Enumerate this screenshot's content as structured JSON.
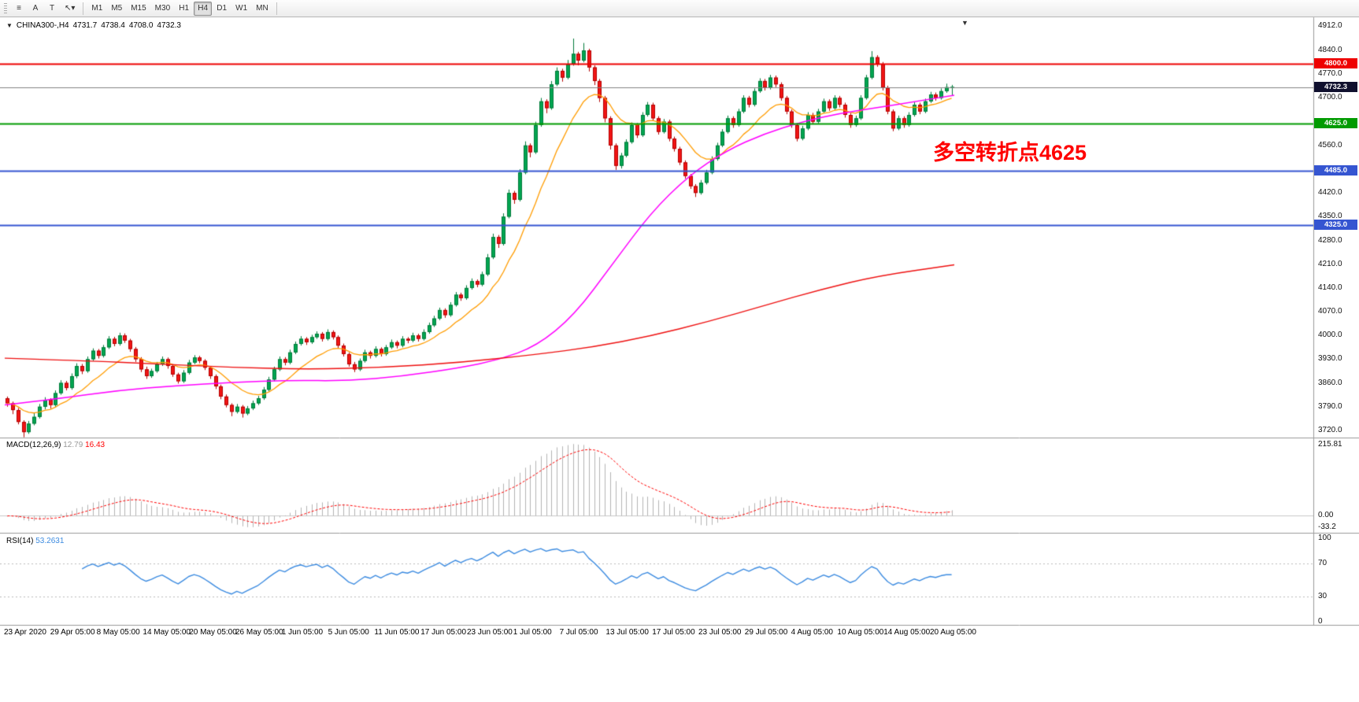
{
  "toolbar": {
    "buttons": [
      {
        "id": "menu",
        "glyph": "≡"
      },
      {
        "id": "text-a",
        "glyph": "A"
      },
      {
        "id": "text-t",
        "glyph": "T"
      },
      {
        "id": "pointer-dropdown",
        "glyph": "↖",
        "dropdown": "▾"
      }
    ],
    "periods": [
      "M1",
      "M5",
      "M15",
      "M30",
      "H1",
      "H4",
      "D1",
      "W1",
      "MN"
    ],
    "active_period": "H4"
  },
  "icons": {
    "shift_marker": "▼"
  },
  "symbol_info": {
    "dropdown_glyph": "▼",
    "symbol": "CHINA300-,H4",
    "open": "4731.7",
    "high": "4738.4",
    "low": "4708.0",
    "close": "4732.3"
  },
  "annotation": {
    "text": "多空转折点4625",
    "color": "#ff0000"
  },
  "current_price": {
    "label": "4732.3",
    "value": 4732.3,
    "badge_bg": "#10102e",
    "line_color": "#808080"
  },
  "macd_panel": {
    "name": "MACD(12,26,9)",
    "value_main": "12.79",
    "value_signal": "16.43",
    "axis_top": "215.81",
    "axis_zero": "0.00",
    "axis_bottom": "-33.2",
    "fast": 12,
    "slow": 26,
    "signal": 9,
    "hist_color": "#b3b3b3",
    "signal_color": "#ff0000",
    "value_main_color": "#999999"
  },
  "rsi_panel": {
    "name": "RSI(14)",
    "value": "53.2631",
    "period": 14,
    "line_color": "#3c8be0",
    "levels": [
      100,
      70,
      30,
      0
    ],
    "level_lines": [
      70,
      30
    ]
  },
  "chart_data": {
    "type": "candlestick",
    "symbol": "CHINA300-",
    "timeframe": "H4",
    "y_range": [
      3699,
      4933
    ],
    "y_ticks": [
      "4912.0",
      "4840.0",
      "4770.0",
      "4700.0",
      "4630.0",
      "4560.0",
      "4490.0",
      "4420.0",
      "4350.0",
      "4280.0",
      "4210.0",
      "4140.0",
      "4070.0",
      "4000.0",
      "3930.0",
      "3860.0",
      "3790.0",
      "3720.0"
    ],
    "x_labels": [
      "23 Apr 2020",
      "29 Apr 05:00",
      "8 May 05:00",
      "14 May 05:00",
      "20 May 05:00",
      "26 May 05:00",
      "1 Jun 05:00",
      "5 Jun 05:00",
      "11 Jun 05:00",
      "17 Jun 05:00",
      "23 Jun 05:00",
      "1 Jul 05:00",
      "7 Jul 05:00",
      "13 Jul 05:00",
      "17 Jul 05:00",
      "23 Jul 05:00",
      "29 Jul 05:00",
      "4 Aug 05:00",
      "10 Aug 05:00",
      "14 Aug 05:00",
      "20 Aug 05:00"
    ],
    "levels": [
      {
        "price": 4800.0,
        "label": "4800.0",
        "color": "#ee0000",
        "width": 2
      },
      {
        "price": 4625.0,
        "label": "4625.0",
        "color": "#009b00",
        "width": 2
      },
      {
        "price": 4485.0,
        "label": "4485.0",
        "color": "#3555d1",
        "width": 2
      },
      {
        "price": 4325.0,
        "label": "4325.0",
        "color": "#3555d1",
        "width": 2
      }
    ],
    "up_color": "#00a651",
    "up_border": "#007a3a",
    "down_color": "#f21515",
    "down_border": "#b30000",
    "ma_fast": {
      "period": 13,
      "color": "#ff9c00"
    },
    "ma_mid": {
      "color": "#ff00ff",
      "anchors": [
        [
          0,
          3795
        ],
        [
          0.06,
          3815
        ],
        [
          0.12,
          3838
        ],
        [
          0.18,
          3852
        ],
        [
          0.24,
          3862
        ],
        [
          0.3,
          3868
        ],
        [
          0.36,
          3866
        ],
        [
          0.42,
          3880
        ],
        [
          0.48,
          3905
        ],
        [
          0.52,
          3928
        ],
        [
          0.56,
          3968
        ],
        [
          0.6,
          4060
        ],
        [
          0.64,
          4210
        ],
        [
          0.68,
          4360
        ],
        [
          0.72,
          4470
        ],
        [
          0.76,
          4545
        ],
        [
          0.8,
          4595
        ],
        [
          0.84,
          4630
        ],
        [
          0.88,
          4655
        ],
        [
          0.92,
          4672
        ],
        [
          0.96,
          4690
        ],
        [
          1,
          4708
        ]
      ]
    },
    "ma_slow": {
      "color": "#ee1111",
      "anchors": [
        [
          0,
          3933
        ],
        [
          0.08,
          3926
        ],
        [
          0.16,
          3916
        ],
        [
          0.24,
          3906
        ],
        [
          0.32,
          3900
        ],
        [
          0.4,
          3906
        ],
        [
          0.48,
          3920
        ],
        [
          0.56,
          3944
        ],
        [
          0.62,
          3966
        ],
        [
          0.68,
          3998
        ],
        [
          0.74,
          4040
        ],
        [
          0.8,
          4088
        ],
        [
          0.86,
          4136
        ],
        [
          0.92,
          4176
        ],
        [
          1,
          4208
        ]
      ]
    },
    "candles": [
      [
        3815,
        3820,
        3790,
        3800
      ],
      [
        3800,
        3805,
        3768,
        3780
      ],
      [
        3780,
        3786,
        3738,
        3745
      ],
      [
        3745,
        3750,
        3700,
        3715
      ],
      [
        3715,
        3748,
        3710,
        3740
      ],
      [
        3740,
        3772,
        3735,
        3760
      ],
      [
        3760,
        3798,
        3755,
        3790
      ],
      [
        3790,
        3818,
        3782,
        3810
      ],
      [
        3810,
        3815,
        3785,
        3795
      ],
      [
        3795,
        3838,
        3790,
        3830
      ],
      [
        3830,
        3868,
        3825,
        3860
      ],
      [
        3860,
        3866,
        3838,
        3845
      ],
      [
        3845,
        3888,
        3840,
        3880
      ],
      [
        3880,
        3918,
        3874,
        3910
      ],
      [
        3910,
        3916,
        3886,
        3895
      ],
      [
        3895,
        3938,
        3890,
        3930
      ],
      [
        3930,
        3962,
        3925,
        3955
      ],
      [
        3955,
        3960,
        3932,
        3940
      ],
      [
        3940,
        3972,
        3935,
        3965
      ],
      [
        3965,
        3998,
        3960,
        3990
      ],
      [
        3990,
        3996,
        3968,
        3975
      ],
      [
        3975,
        4008,
        3970,
        4000
      ],
      [
        4000,
        4006,
        3978,
        3985
      ],
      [
        3985,
        3990,
        3952,
        3960
      ],
      [
        3960,
        3966,
        3922,
        3930
      ],
      [
        3930,
        3936,
        3892,
        3900
      ],
      [
        3900,
        3908,
        3872,
        3880
      ],
      [
        3880,
        3902,
        3875,
        3895
      ],
      [
        3895,
        3922,
        3890,
        3915
      ],
      [
        3915,
        3938,
        3910,
        3930
      ],
      [
        3930,
        3935,
        3902,
        3910
      ],
      [
        3910,
        3915,
        3878,
        3885
      ],
      [
        3885,
        3890,
        3858,
        3865
      ],
      [
        3865,
        3898,
        3860,
        3890
      ],
      [
        3890,
        3928,
        3885,
        3920
      ],
      [
        3920,
        3942,
        3915,
        3935
      ],
      [
        3935,
        3940,
        3918,
        3925
      ],
      [
        3925,
        3930,
        3898,
        3905
      ],
      [
        3905,
        3910,
        3872,
        3880
      ],
      [
        3880,
        3885,
        3842,
        3850
      ],
      [
        3850,
        3855,
        3812,
        3820
      ],
      [
        3820,
        3826,
        3788,
        3795
      ],
      [
        3795,
        3800,
        3762,
        3775
      ],
      [
        3775,
        3798,
        3770,
        3790
      ],
      [
        3790,
        3795,
        3758,
        3770
      ],
      [
        3770,
        3792,
        3765,
        3785
      ],
      [
        3785,
        3808,
        3780,
        3800
      ],
      [
        3800,
        3822,
        3795,
        3815
      ],
      [
        3815,
        3848,
        3810,
        3840
      ],
      [
        3840,
        3878,
        3835,
        3870
      ],
      [
        3870,
        3908,
        3865,
        3900
      ],
      [
        3900,
        3938,
        3895,
        3930
      ],
      [
        3930,
        3936,
        3912,
        3920
      ],
      [
        3920,
        3958,
        3915,
        3950
      ],
      [
        3950,
        3982,
        3945,
        3975
      ],
      [
        3975,
        3998,
        3970,
        3990
      ],
      [
        3990,
        3995,
        3972,
        3980
      ],
      [
        3980,
        4002,
        3975,
        3995
      ],
      [
        3995,
        4012,
        3990,
        4005
      ],
      [
        4005,
        4010,
        3982,
        3990
      ],
      [
        3990,
        4018,
        3985,
        4010
      ],
      [
        4010,
        4015,
        3988,
        3995
      ],
      [
        3995,
        4000,
        3962,
        3970
      ],
      [
        3970,
        3976,
        3938,
        3945
      ],
      [
        3945,
        3950,
        3908,
        3915
      ],
      [
        3915,
        3922,
        3892,
        3900
      ],
      [
        3900,
        3932,
        3895,
        3925
      ],
      [
        3925,
        3958,
        3920,
        3950
      ],
      [
        3950,
        3955,
        3932,
        3940
      ],
      [
        3940,
        3968,
        3935,
        3960
      ],
      [
        3960,
        3965,
        3938,
        3945
      ],
      [
        3945,
        3972,
        3940,
        3965
      ],
      [
        3965,
        3988,
        3960,
        3980
      ],
      [
        3980,
        3985,
        3962,
        3970
      ],
      [
        3970,
        3998,
        3965,
        3990
      ],
      [
        3990,
        3995,
        3977,
        3985
      ],
      [
        3985,
        4008,
        3980,
        4000
      ],
      [
        4000,
        4005,
        3982,
        3990
      ],
      [
        3990,
        4018,
        3985,
        4010
      ],
      [
        4010,
        4038,
        4005,
        4030
      ],
      [
        4030,
        4058,
        4025,
        4050
      ],
      [
        4050,
        4082,
        4045,
        4075
      ],
      [
        4075,
        4080,
        4052,
        4060
      ],
      [
        4060,
        4098,
        4055,
        4090
      ],
      [
        4090,
        4128,
        4085,
        4120
      ],
      [
        4120,
        4126,
        4102,
        4110
      ],
      [
        4110,
        4148,
        4105,
        4140
      ],
      [
        4140,
        4168,
        4135,
        4160
      ],
      [
        4160,
        4165,
        4142,
        4150
      ],
      [
        4150,
        4188,
        4145,
        4180
      ],
      [
        4180,
        4240,
        4175,
        4230
      ],
      [
        4230,
        4300,
        4225,
        4290
      ],
      [
        4290,
        4296,
        4258,
        4270
      ],
      [
        4270,
        4360,
        4265,
        4350
      ],
      [
        4350,
        4430,
        4345,
        4420
      ],
      [
        4420,
        4426,
        4388,
        4400
      ],
      [
        4400,
        4490,
        4395,
        4480
      ],
      [
        4480,
        4572,
        4475,
        4560
      ],
      [
        4560,
        4566,
        4525,
        4540
      ],
      [
        4540,
        4630,
        4535,
        4620
      ],
      [
        4620,
        4700,
        4615,
        4690
      ],
      [
        4690,
        4696,
        4655,
        4670
      ],
      [
        4670,
        4750,
        4665,
        4740
      ],
      [
        4740,
        4790,
        4735,
        4780
      ],
      [
        4780,
        4786,
        4748,
        4760
      ],
      [
        4760,
        4812,
        4755,
        4800
      ],
      [
        4800,
        4875,
        4795,
        4830
      ],
      [
        4830,
        4836,
        4796,
        4810
      ],
      [
        4810,
        4862,
        4805,
        4840
      ],
      [
        4840,
        4845,
        4778,
        4790
      ],
      [
        4790,
        4796,
        4738,
        4750
      ],
      [
        4750,
        4756,
        4688,
        4700
      ],
      [
        4700,
        4706,
        4628,
        4640
      ],
      [
        4640,
        4646,
        4548,
        4560
      ],
      [
        4560,
        4566,
        4488,
        4500
      ],
      [
        4500,
        4538,
        4492,
        4530
      ],
      [
        4530,
        4578,
        4525,
        4570
      ],
      [
        4570,
        4628,
        4565,
        4620
      ],
      [
        4620,
        4626,
        4582,
        4590
      ],
      [
        4590,
        4658,
        4585,
        4650
      ],
      [
        4650,
        4688,
        4645,
        4680
      ],
      [
        4680,
        4686,
        4632,
        4640
      ],
      [
        4640,
        4646,
        4592,
        4600
      ],
      [
        4600,
        4638,
        4595,
        4630
      ],
      [
        4630,
        4636,
        4572,
        4580
      ],
      [
        4580,
        4586,
        4542,
        4550
      ],
      [
        4550,
        4556,
        4502,
        4510
      ],
      [
        4510,
        4516,
        4462,
        4470
      ],
      [
        4470,
        4476,
        4432,
        4440
      ],
      [
        4440,
        4446,
        4408,
        4420
      ],
      [
        4420,
        4458,
        4415,
        4450
      ],
      [
        4450,
        4488,
        4445,
        4480
      ],
      [
        4480,
        4528,
        4475,
        4520
      ],
      [
        4520,
        4568,
        4515,
        4560
      ],
      [
        4560,
        4608,
        4555,
        4600
      ],
      [
        4600,
        4648,
        4595,
        4640
      ],
      [
        4640,
        4646,
        4612,
        4620
      ],
      [
        4620,
        4668,
        4615,
        4660
      ],
      [
        4660,
        4708,
        4655,
        4700
      ],
      [
        4700,
        4706,
        4672,
        4680
      ],
      [
        4680,
        4728,
        4675,
        4720
      ],
      [
        4720,
        4758,
        4715,
        4750
      ],
      [
        4750,
        4756,
        4722,
        4730
      ],
      [
        4730,
        4768,
        4725,
        4760
      ],
      [
        4760,
        4766,
        4732,
        4740
      ],
      [
        4740,
        4746,
        4692,
        4700
      ],
      [
        4700,
        4706,
        4652,
        4660
      ],
      [
        4660,
        4666,
        4612,
        4620
      ],
      [
        4620,
        4626,
        4572,
        4580
      ],
      [
        4580,
        4618,
        4575,
        4610
      ],
      [
        4610,
        4658,
        4605,
        4650
      ],
      [
        4650,
        4656,
        4622,
        4630
      ],
      [
        4630,
        4668,
        4625,
        4660
      ],
      [
        4660,
        4698,
        4655,
        4690
      ],
      [
        4690,
        4696,
        4662,
        4670
      ],
      [
        4670,
        4708,
        4665,
        4700
      ],
      [
        4700,
        4706,
        4672,
        4680
      ],
      [
        4680,
        4686,
        4642,
        4650
      ],
      [
        4650,
        4656,
        4612,
        4620
      ],
      [
        4620,
        4648,
        4615,
        4640
      ],
      [
        4640,
        4708,
        4635,
        4700
      ],
      [
        4700,
        4768,
        4695,
        4760
      ],
      [
        4760,
        4838,
        4755,
        4820
      ],
      [
        4820,
        4826,
        4792,
        4800
      ],
      [
        4800,
        4806,
        4722,
        4730
      ],
      [
        4730,
        4736,
        4652,
        4660
      ],
      [
        4660,
        4666,
        4602,
        4610
      ],
      [
        4610,
        4648,
        4605,
        4640
      ],
      [
        4640,
        4646,
        4612,
        4620
      ],
      [
        4620,
        4658,
        4615,
        4650
      ],
      [
        4650,
        4688,
        4645,
        4680
      ],
      [
        4680,
        4686,
        4652,
        4660
      ],
      [
        4660,
        4698,
        4655,
        4690
      ],
      [
        4690,
        4718,
        4685,
        4710
      ],
      [
        4710,
        4716,
        4692,
        4700
      ],
      [
        4700,
        4728,
        4695,
        4720
      ],
      [
        4720,
        4742,
        4715,
        4731.7
      ],
      [
        4731.7,
        4738.4,
        4708,
        4732.3
      ]
    ]
  }
}
